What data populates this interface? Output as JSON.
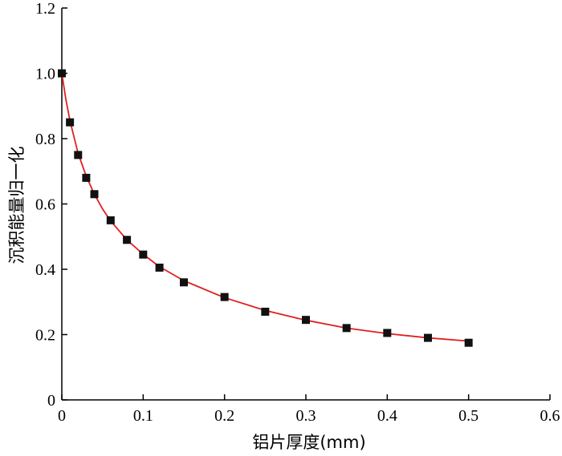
{
  "chart_data": {
    "type": "scatter",
    "title": "",
    "xlabel": "铝片厚度(mm)",
    "ylabel": "沉积能量归一化",
    "xlim": [
      0,
      0.6
    ],
    "ylim": [
      0,
      1.2
    ],
    "xticks": [
      "0",
      "0.1",
      "0.2",
      "0.3",
      "0.4",
      "0.5",
      "0.6"
    ],
    "yticks": [
      "0",
      "0.2",
      "0.4",
      "0.6",
      "0.8",
      "1.0",
      "1.2"
    ],
    "grid": false,
    "legend": "none",
    "series": [
      {
        "kind": "points",
        "marker": "square",
        "color": "#111111",
        "x": [
          0,
          0.01,
          0.02,
          0.03,
          0.04,
          0.06,
          0.08,
          0.1,
          0.12,
          0.15,
          0.2,
          0.25,
          0.3,
          0.35,
          0.4,
          0.45,
          0.5
        ],
        "y": [
          1.0,
          0.85,
          0.75,
          0.68,
          0.63,
          0.55,
          0.49,
          0.445,
          0.405,
          0.36,
          0.315,
          0.27,
          0.245,
          0.22,
          0.205,
          0.19,
          0.175
        ]
      },
      {
        "kind": "fit_curve",
        "color": "#e02020",
        "x": [
          0,
          0.005,
          0.01,
          0.02,
          0.03,
          0.04,
          0.05,
          0.06,
          0.08,
          0.1,
          0.12,
          0.15,
          0.2,
          0.25,
          0.3,
          0.35,
          0.4,
          0.45,
          0.5
        ],
        "y": [
          1.0,
          0.92,
          0.855,
          0.755,
          0.685,
          0.63,
          0.585,
          0.548,
          0.49,
          0.446,
          0.408,
          0.365,
          0.313,
          0.274,
          0.244,
          0.22,
          0.203,
          0.19,
          0.18
        ]
      }
    ]
  }
}
